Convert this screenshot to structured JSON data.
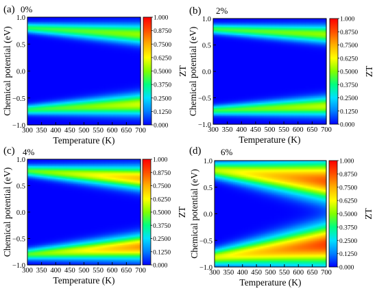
{
  "colorscale": {
    "stops": [
      "#0000ff",
      "#0080ff",
      "#00e0ff",
      "#00ff80",
      "#80ff00",
      "#ffff00",
      "#ffb000",
      "#ff5000",
      "#ff0000"
    ],
    "range": [
      0.0,
      1.0
    ]
  },
  "chart_data": [
    {
      "type": "heatmap",
      "panel_label": "(a)",
      "title": "0%",
      "xlabel": "Temperature (K)",
      "ylabel": "Chemical potential (eV)",
      "colorbar_label": "ZT",
      "xlim": [
        300,
        700
      ],
      "ylim": [
        -1.0,
        1.0
      ],
      "x_ticks": [
        "300",
        "350",
        "400",
        "450",
        "500",
        "550",
        "600",
        "650",
        "700"
      ],
      "y_ticks": [
        "-1.0",
        "-0.5",
        "0.0",
        "0.5",
        "1.0"
      ],
      "colorbar_ticks": [
        "1.000",
        "0.8750",
        "0.7500",
        "0.6250",
        "0.5000",
        "0.3750",
        "0.2500",
        "0.1250",
        "0.000"
      ],
      "zlim": [
        0.0,
        1.0
      ],
      "bands": [
        {
          "name": "conduction",
          "center_start": 0.8,
          "center_end": 0.68,
          "width_start": 0.06,
          "width_end": 0.12,
          "peak_start": 0.4,
          "peak_end": 0.52
        },
        {
          "name": "valence",
          "center_start": -0.72,
          "center_end": -0.62,
          "width_start": 0.06,
          "width_end": 0.13,
          "peak_start": 0.4,
          "peak_end": 0.58
        }
      ]
    },
    {
      "type": "heatmap",
      "panel_label": "(b)",
      "title": "2%",
      "xlabel": "Temperature (K)",
      "ylabel": "Chemical potential (eV)",
      "colorbar_label": "ZT",
      "xlim": [
        300,
        700
      ],
      "ylim": [
        -1.0,
        1.0
      ],
      "x_ticks": [
        "300",
        "350",
        "400",
        "450",
        "500",
        "550",
        "600",
        "650",
        "700"
      ],
      "y_ticks": [
        "-1.0",
        "-0.5",
        "0.0",
        "0.5",
        "1.0"
      ],
      "colorbar_ticks": [
        "1.000",
        "0.8750",
        "0.7500",
        "0.6250",
        "0.5000",
        "0.3750",
        "0.2500",
        "0.1250",
        "0.000"
      ],
      "zlim": [
        0.0,
        1.0
      ],
      "bands": [
        {
          "name": "conduction",
          "center_start": 0.8,
          "center_end": 0.7,
          "width_start": 0.06,
          "width_end": 0.11,
          "peak_start": 0.42,
          "peak_end": 0.52
        },
        {
          "name": "valence",
          "center_start": -0.74,
          "center_end": -0.66,
          "width_start": 0.06,
          "width_end": 0.12,
          "peak_start": 0.42,
          "peak_end": 0.56
        }
      ]
    },
    {
      "type": "heatmap",
      "panel_label": "(c)",
      "title": "4%",
      "xlabel": "Temperature (K)",
      "ylabel": "Chemical potential (eV)",
      "colorbar_label": "ZT",
      "xlim": [
        300,
        700
      ],
      "ylim": [
        -1.0,
        1.0
      ],
      "x_ticks": [
        "300",
        "350",
        "400",
        "450",
        "500",
        "550",
        "600",
        "650",
        "700"
      ],
      "y_ticks": [
        "-1.0",
        "-0.5",
        "0.0",
        "0.5",
        "1.0"
      ],
      "colorbar_ticks": [
        "1.000",
        "0.8750",
        "0.7500",
        "0.6250",
        "0.5000",
        "0.3750",
        "0.2500",
        "0.1250",
        "0.000"
      ],
      "zlim": [
        0.0,
        1.0
      ],
      "bands": [
        {
          "name": "conduction",
          "center_start": 0.78,
          "center_end": 0.64,
          "width_start": 0.07,
          "width_end": 0.14,
          "peak_start": 0.45,
          "peak_end": 0.72
        },
        {
          "name": "valence",
          "center_start": -0.8,
          "center_end": -0.66,
          "width_start": 0.07,
          "width_end": 0.15,
          "peak_start": 0.45,
          "peak_end": 0.78
        }
      ]
    },
    {
      "type": "heatmap",
      "panel_label": "(d)",
      "title": "6%",
      "xlabel": "Temperature (K)",
      "ylabel": "Chemical potential (eV)",
      "colorbar_label": "ZT",
      "xlim": [
        300,
        700
      ],
      "ylim": [
        -1.0,
        1.0
      ],
      "x_ticks": [
        "300",
        "350",
        "400",
        "450",
        "500",
        "550",
        "600",
        "650",
        "700"
      ],
      "y_ticks": [
        "-1.0",
        "-0.5",
        "0.0",
        "0.5",
        "1.0"
      ],
      "colorbar_ticks": [
        "1.000",
        "0.8750",
        "0.7500",
        "0.6250",
        "0.5000",
        "0.3750",
        "0.2500",
        "0.1250",
        "0.000"
      ],
      "zlim": [
        0.0,
        1.0
      ],
      "bands": [
        {
          "name": "conduction",
          "center_start": 0.82,
          "center_end": 0.62,
          "width_start": 0.1,
          "width_end": 0.24,
          "peak_start": 0.55,
          "peak_end": 0.86
        },
        {
          "name": "valence",
          "center_start": -0.82,
          "center_end": -0.58,
          "width_start": 0.1,
          "width_end": 0.25,
          "peak_start": 0.58,
          "peak_end": 0.9
        }
      ]
    }
  ]
}
